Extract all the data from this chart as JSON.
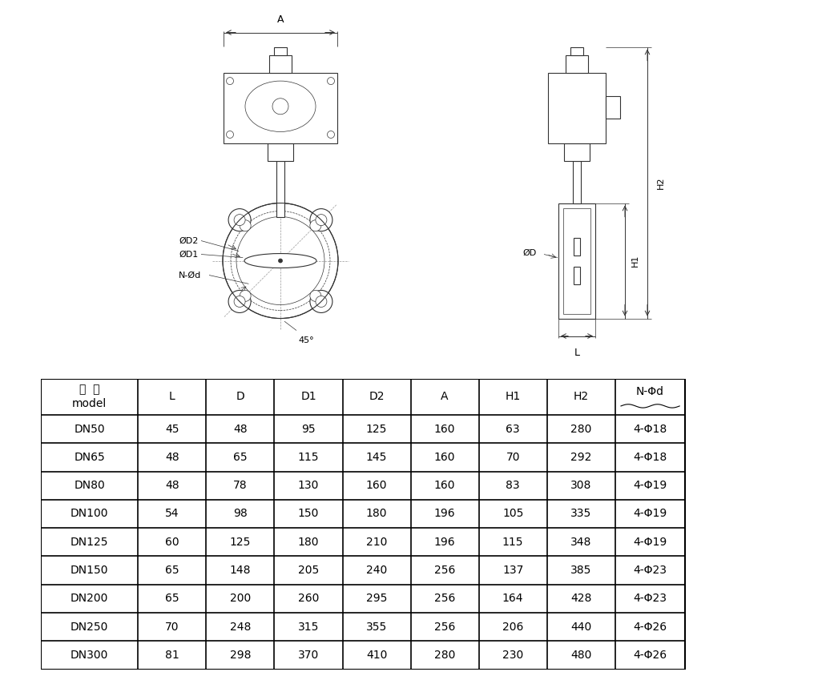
{
  "table_header_line1": "型  号",
  "table_header_line2": "model",
  "table_cols": [
    "L",
    "D",
    "D1",
    "D2",
    "A",
    "H1",
    "H2",
    "N-Φd"
  ],
  "table_data": [
    [
      "DN50",
      "45",
      "48",
      "95",
      "125",
      "160",
      "63",
      "280",
      "4-Φ18"
    ],
    [
      "DN65",
      "48",
      "65",
      "115",
      "145",
      "160",
      "70",
      "292",
      "4-Φ18"
    ],
    [
      "DN80",
      "48",
      "78",
      "130",
      "160",
      "160",
      "83",
      "308",
      "4-Φ19"
    ],
    [
      "DN100",
      "54",
      "98",
      "150",
      "180",
      "196",
      "105",
      "335",
      "4-Φ19"
    ],
    [
      "DN125",
      "60",
      "125",
      "180",
      "210",
      "196",
      "115",
      "348",
      "4-Φ19"
    ],
    [
      "DN150",
      "65",
      "148",
      "205",
      "240",
      "256",
      "137",
      "385",
      "4-Φ23"
    ],
    [
      "DN200",
      "65",
      "200",
      "260",
      "295",
      "256",
      "164",
      "428",
      "4-Φ23"
    ],
    [
      "DN250",
      "70",
      "248",
      "315",
      "355",
      "256",
      "206",
      "440",
      "4-Φ26"
    ],
    [
      "DN300",
      "81",
      "298",
      "370",
      "410",
      "280",
      "230",
      "480",
      "4-Φ26"
    ]
  ],
  "bg_color": "#ffffff",
  "line_color": "#333333",
  "text_color": "#000000",
  "font_size_header": 10,
  "font_size_data": 10,
  "font_size_label": 8
}
